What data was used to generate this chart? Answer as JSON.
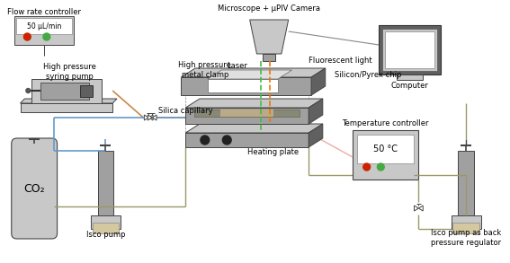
{
  "bg_color": "#ffffff",
  "labels": {
    "flow_rate_controller": "Flow rate controller",
    "high_pressure_syring_pump": "High pressure\nsyring pump",
    "silica_capillary": "Silica capillary",
    "high_pressure_metal_clamp": "High pressure\nmetal clamp",
    "microscope": "Microscope + μPIV Camera",
    "laser": "Laser",
    "fluorescent_light": "Fluorescent light",
    "silicon_pyrex_chip": "Silicon/Pyrex chip",
    "computer": "Computer",
    "heating_plate": "Heating plate",
    "temperature_controller": "Temperature controller",
    "co2": "CO₂",
    "isco_pump": "Isco pump",
    "isco_pump_back": "Isco pump as back\npressure regulator",
    "temp_value": "50 °C",
    "flow_value": "50 μL/min"
  },
  "colors": {
    "gray_light": "#c8c8c8",
    "gray_mid": "#a0a0a0",
    "gray_dark": "#606060",
    "gray_darker": "#484848",
    "blue_line": "#6699cc",
    "orange_line": "#cc8844",
    "green_line": "#88bb88",
    "red_dot": "#cc2200",
    "green_dot": "#44aa44",
    "heating_pink": "#f0aaaa",
    "laser_green": "#44bb44",
    "laser_orange": "#ee7700",
    "tan": "#d4c8a0"
  }
}
